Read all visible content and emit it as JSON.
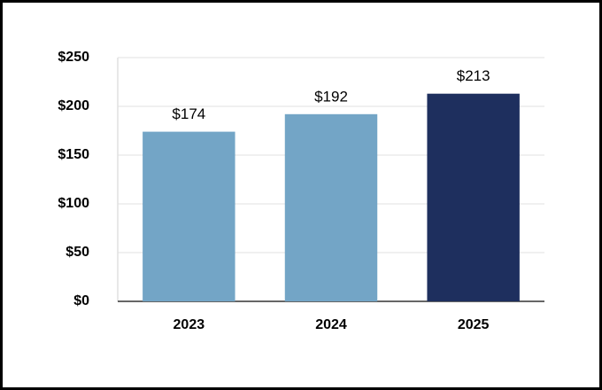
{
  "chart_data": {
    "type": "bar",
    "categories": [
      "2023",
      "2024",
      "2025"
    ],
    "values": [
      174,
      192,
      213
    ],
    "value_labels": [
      "$174",
      "$192",
      "$213"
    ],
    "colors": [
      "#73a5c6",
      "#73a5c6",
      "#1e2f5e"
    ],
    "ylim": [
      0,
      250
    ],
    "yticks": [
      {
        "value": 0,
        "label": "$0"
      },
      {
        "value": 50,
        "label": "$50"
      },
      {
        "value": 100,
        "label": "$100"
      },
      {
        "value": 150,
        "label": "$150"
      },
      {
        "value": 200,
        "label": "$200"
      },
      {
        "value": 250,
        "label": "$250"
      }
    ],
    "grid": true
  }
}
